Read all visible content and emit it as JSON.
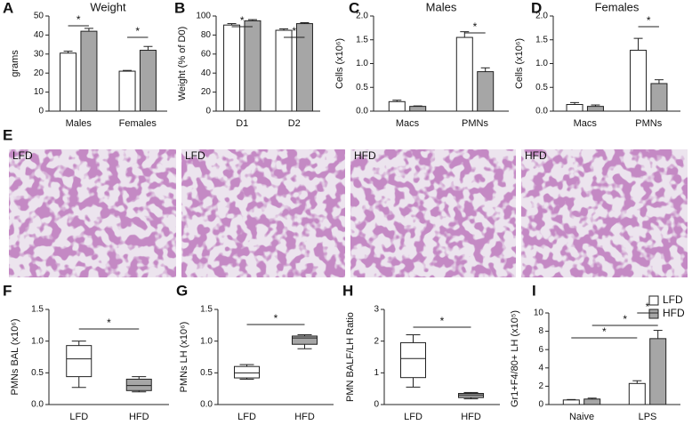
{
  "chart_data": [
    {
      "type": "bar",
      "panel": "A",
      "title": "Weight",
      "ylabel": "grams",
      "categories": [
        "Males",
        "Females"
      ],
      "series": [
        {
          "color": "#ffffff",
          "values": [
            30.5,
            21
          ],
          "errors": [
            1,
            0.4
          ]
        },
        {
          "color": "#a6a6a6",
          "values": [
            42,
            32
          ],
          "errors": [
            1.5,
            2
          ]
        }
      ],
      "ylim": [
        0,
        50
      ],
      "yticks": [
        0,
        10,
        20,
        30,
        40,
        50
      ],
      "annotations": [
        "*",
        "*"
      ]
    },
    {
      "type": "bar",
      "panel": "B",
      "ylabel": "Weight (% of D0)",
      "categories": [
        "D1",
        "D2"
      ],
      "series": [
        {
          "color": "#ffffff",
          "values": [
            90.5,
            85
          ],
          "errors": [
            1.5,
            1.5
          ]
        },
        {
          "color": "#a6a6a6",
          "values": [
            95,
            92
          ],
          "errors": [
            1.2,
            1
          ]
        }
      ],
      "ylim": [
        0,
        100
      ],
      "yticks": [
        0,
        20,
        40,
        60,
        80,
        100
      ],
      "annotations": [
        "*",
        "*"
      ]
    },
    {
      "type": "bar",
      "panel": "C",
      "title": "Males",
      "ylabel": "Cells (x10⁶)",
      "categories": [
        "Macs",
        "PMNs"
      ],
      "series": [
        {
          "color": "#ffffff",
          "values": [
            0.2,
            1.55
          ],
          "errors": [
            0.03,
            0.12
          ]
        },
        {
          "color": "#a6a6a6",
          "values": [
            0.1,
            0.83
          ],
          "errors": [
            0.01,
            0.08
          ]
        }
      ],
      "ylim": [
        0,
        2
      ],
      "yticks": [
        {
          "value": 0,
          "label": "0.0"
        },
        0.5,
        {
          "value": 1,
          "label": "1.0"
        },
        1.5,
        {
          "value": 2,
          "label": "2.0"
        }
      ],
      "annotations": [
        "*"
      ]
    },
    {
      "type": "bar",
      "panel": "D",
      "title": "Females",
      "ylabel": "Cells (x10⁶)",
      "categories": [
        "Macs",
        "PMNs"
      ],
      "series": [
        {
          "color": "#ffffff",
          "values": [
            0.14,
            1.28
          ],
          "errors": [
            0.04,
            0.25
          ]
        },
        {
          "color": "#a6a6a6",
          "values": [
            0.1,
            0.58
          ],
          "errors": [
            0.03,
            0.08
          ]
        }
      ],
      "ylim": [
        0,
        2
      ],
      "yticks": [
        {
          "value": 0,
          "label": "0.0"
        },
        0.5,
        {
          "value": 1,
          "label": "1.0"
        },
        1.5,
        {
          "value": 2,
          "label": "2.0"
        }
      ],
      "annotations": [
        "*"
      ]
    },
    {
      "type": "image",
      "panel": "E",
      "labels": [
        "LFD",
        "LFD",
        "HFD",
        "HFD"
      ]
    },
    {
      "type": "box",
      "panel": "F",
      "ylabel": "PMNs BAL (x10⁶)",
      "categories": [
        "LFD",
        "HFD"
      ],
      "boxes": [
        {
          "color": "#ffffff",
          "min": 0.27,
          "q1": 0.44,
          "median": 0.72,
          "q3": 0.93,
          "max": 1.0
        },
        {
          "color": "#a6a6a6",
          "min": 0.2,
          "q1": 0.22,
          "median": 0.3,
          "q3": 0.4,
          "max": 0.44
        }
      ],
      "ylim": [
        0,
        1.5
      ],
      "yticks": [
        {
          "value": 0,
          "label": "0.0"
        },
        0.5,
        {
          "value": 1,
          "label": "1.0"
        },
        1.5
      ],
      "annotations": [
        "*"
      ]
    },
    {
      "type": "box",
      "panel": "G",
      "ylabel": "PMNs LH (x10⁶)",
      "categories": [
        "LFD",
        "HFD"
      ],
      "boxes": [
        {
          "color": "#ffffff",
          "min": 0.4,
          "q1": 0.42,
          "median": 0.5,
          "q3": 0.6,
          "max": 0.63
        },
        {
          "color": "#a6a6a6",
          "min": 0.88,
          "q1": 0.95,
          "median": 1.05,
          "q3": 1.08,
          "max": 1.1
        }
      ],
      "ylim": [
        0,
        1.5
      ],
      "yticks": [
        {
          "value": 0,
          "label": "0.0"
        },
        0.5,
        {
          "value": 1,
          "label": "1.0"
        },
        1.5
      ],
      "annotations": [
        "*"
      ]
    },
    {
      "type": "box",
      "panel": "H",
      "ylabel": "PMN BALF/LH Ratio",
      "categories": [
        "LFD",
        "HFD"
      ],
      "boxes": [
        {
          "color": "#ffffff",
          "min": 0.55,
          "q1": 0.85,
          "median": 1.45,
          "q3": 1.95,
          "max": 2.2
        },
        {
          "color": "#a6a6a6",
          "min": 0.18,
          "q1": 0.22,
          "median": 0.3,
          "q3": 0.35,
          "max": 0.38
        }
      ],
      "ylim": [
        0,
        3
      ],
      "yticks": [
        0,
        1,
        2,
        3
      ],
      "annotations": [
        "*"
      ]
    },
    {
      "type": "bar",
      "panel": "I",
      "ylabel": "Gr1+F4/80+ LH (x10⁵)",
      "categories": [
        "Naive",
        "LPS"
      ],
      "legend": "top-right",
      "series": [
        {
          "name": "LFD",
          "color": "#ffffff",
          "values": [
            0.5,
            2.3
          ],
          "errors": [
            0.05,
            0.3
          ]
        },
        {
          "name": "HFD",
          "color": "#a6a6a6",
          "values": [
            0.6,
            7.2
          ],
          "errors": [
            0.1,
            0.9
          ]
        }
      ],
      "ylim": [
        0,
        10
      ],
      "yticks": [
        0,
        2,
        4,
        6,
        8,
        10
      ],
      "annotations": [
        "*",
        "*",
        "*"
      ]
    }
  ]
}
